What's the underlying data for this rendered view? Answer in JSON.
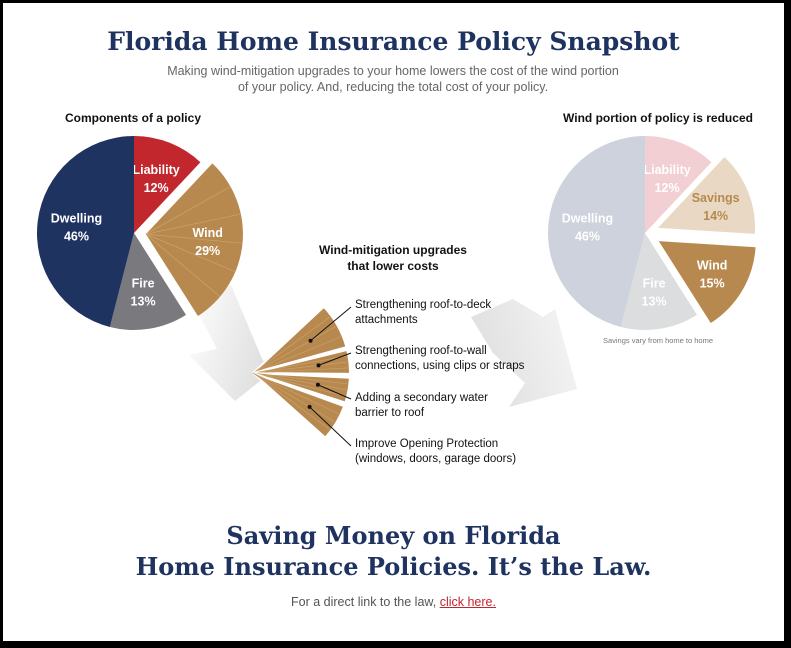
{
  "header": {
    "title": "Florida Home Insurance Policy Snapshot",
    "subtitle_line1": "Making wind-mitigation upgrades to your home lowers the cost of the wind portion",
    "subtitle_line2": "of your policy. And, reducing the total cost of your policy."
  },
  "colors": {
    "dwelling": "#1f3361",
    "liability": "#c1272d",
    "wind": "#b8894f",
    "fire": "#7a7a7e",
    "faded_dwelling": "#cdd2dc",
    "faded_liability": "#f2cfd2",
    "faded_fire": "#dcddde",
    "savings": "#e9d9c4",
    "savings_text": "#b8894f",
    "title_navy": "#1f3361",
    "link_red": "#c1272d"
  },
  "chart_data": [
    {
      "type": "pie",
      "title": "Components of a policy",
      "slices": [
        {
          "label": "Liability",
          "value": 12,
          "value_label": "12%"
        },
        {
          "label": "Wind",
          "value": 29,
          "value_label": "29%",
          "exploded": true
        },
        {
          "label": "Fire",
          "value": 13,
          "value_label": "13%"
        },
        {
          "label": "Dwelling",
          "value": 46,
          "value_label": "46%"
        }
      ]
    },
    {
      "type": "pie",
      "title": "Wind portion of policy is reduced",
      "slices": [
        {
          "label": "Liability",
          "value": 12,
          "value_label": "12%"
        },
        {
          "label": "Savings",
          "value": 14,
          "value_label": "14%",
          "exploded": true
        },
        {
          "label": "Wind",
          "value": 15,
          "value_label": "15%",
          "exploded": true
        },
        {
          "label": "Fire",
          "value": 13,
          "value_label": "13%"
        },
        {
          "label": "Dwelling",
          "value": 46,
          "value_label": "46%"
        }
      ],
      "note": "Savings vary from home to home"
    }
  ],
  "upgrades": {
    "title_line1": "Wind-mitigation upgrades",
    "title_line2": "that lower costs",
    "items": [
      {
        "line1": "Strengthening roof-to-deck",
        "line2": "attachments"
      },
      {
        "line1": "Strengthening roof-to-wall",
        "line2": "connections, using clips or straps"
      },
      {
        "line1": "Adding a secondary water",
        "line2": "barrier to roof"
      },
      {
        "line1": "Improve Opening Protection",
        "line2": "(windows, doors, garage doors)"
      }
    ]
  },
  "footer": {
    "headline_line1": "Saving Money on Florida",
    "headline_line2": "Home Insurance Policies. It’s the Law.",
    "law_text": "For a direct link to the law, ",
    "law_link": "click here."
  }
}
